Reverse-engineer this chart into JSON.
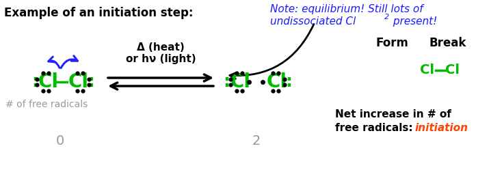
{
  "title": "Example of an initiation step:",
  "note_line1": "Note: equilibrium! Still lots of",
  "note_line2a": "undissociated Cl",
  "note_sub": "2",
  "note_line2b": " present!",
  "heat_text": "Δ (heat)",
  "light_text": "or hν (light)",
  "label_radicals": "# of free radicals",
  "label_0": "0",
  "label_2": "2",
  "form_label": "Form",
  "break_label": "Break",
  "cl_cl_bond": "Cl—Cl",
  "net_line1": "Net increase in # of",
  "net_line2": "free radicals: ",
  "net_word": "initiation",
  "bg_color": "#ffffff",
  "black": "#000000",
  "green": "#00bb00",
  "blue": "#2222ff",
  "red": "#ff4400",
  "gray": "#999999",
  "dark_blue": "#1a1aff"
}
